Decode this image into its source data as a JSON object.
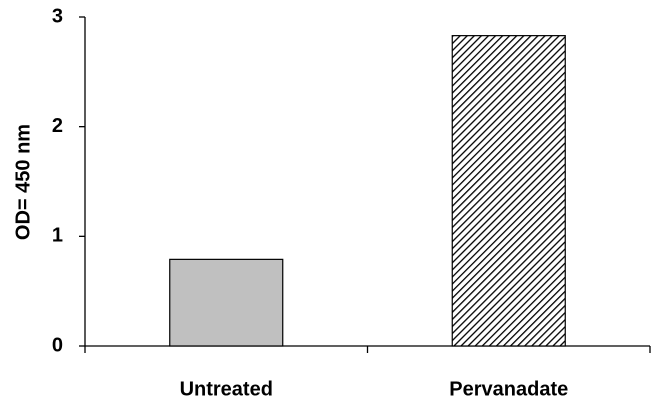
{
  "chart_data": {
    "type": "bar",
    "y_label": "OD= 450 nm",
    "categories": [
      "Untreated",
      "Pervanadate"
    ],
    "values": [
      0.79,
      2.83
    ],
    "colors": [
      "#c0c0c0",
      "#ffffff"
    ],
    "hatch": [
      false,
      true
    ],
    "ylim": [
      0,
      3
    ],
    "yticks": [
      0,
      1,
      2,
      3
    ],
    "grid": false
  }
}
